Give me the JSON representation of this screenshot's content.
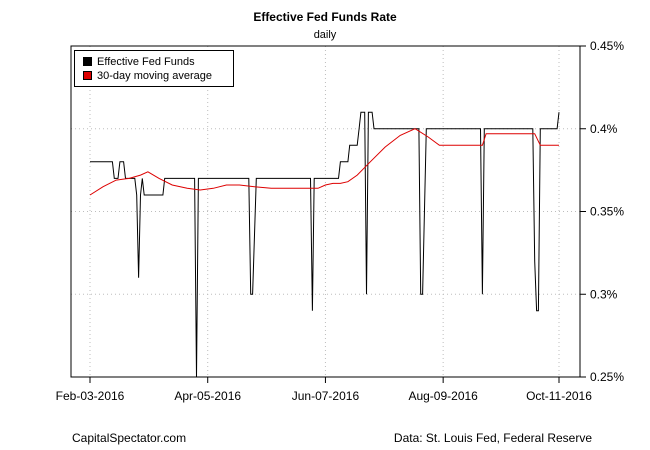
{
  "chart_data": {
    "type": "line",
    "title": "Effective Fed Funds Rate",
    "subtitle": "daily",
    "xlabel": "",
    "ylabel": "",
    "x_ticks": [
      "Feb-03-2016",
      "Apr-05-2016",
      "Jun-07-2016",
      "Aug-09-2016",
      "Oct-11-2016"
    ],
    "x_range": [
      "2016-02-03",
      "2016-10-11"
    ],
    "y_ticks": [
      "0.25%",
      "0.3%",
      "0.35%",
      "0.4%",
      "0.45%"
    ],
    "ylim": [
      0.25,
      0.45
    ],
    "y_axis_side": "right",
    "grid": true,
    "legend": "top-left",
    "series": [
      {
        "name": "Effective Fed Funds",
        "color": "#000000",
        "points": [
          [
            "2016-02-03",
            0.38
          ],
          [
            "2016-02-15",
            0.38
          ],
          [
            "2016-02-16",
            0.37
          ],
          [
            "2016-02-18",
            0.37
          ],
          [
            "2016-02-19",
            0.38
          ],
          [
            "2016-02-21",
            0.38
          ],
          [
            "2016-02-22",
            0.37
          ],
          [
            "2016-02-25",
            0.37
          ],
          [
            "2016-02-27",
            0.37
          ],
          [
            "2016-02-28",
            0.36
          ],
          [
            "2016-02-29",
            0.31
          ],
          [
            "2016-03-01",
            0.36
          ],
          [
            "2016-03-02",
            0.37
          ],
          [
            "2016-03-03",
            0.36
          ],
          [
            "2016-03-13",
            0.36
          ],
          [
            "2016-03-14",
            0.37
          ],
          [
            "2016-03-25",
            0.37
          ],
          [
            "2016-03-27",
            0.37
          ],
          [
            "2016-03-30",
            0.37
          ],
          [
            "2016-03-31",
            0.25
          ],
          [
            "2016-04-01",
            0.37
          ],
          [
            "2016-04-03",
            0.37
          ],
          [
            "2016-04-28",
            0.37
          ],
          [
            "2016-04-29",
            0.3
          ],
          [
            "2016-04-30",
            0.3
          ],
          [
            "2016-05-02",
            0.37
          ],
          [
            "2016-05-31",
            0.37
          ],
          [
            "2016-06-01",
            0.29
          ],
          [
            "2016-06-02",
            0.37
          ],
          [
            "2016-06-15",
            0.37
          ],
          [
            "2016-06-16",
            0.38
          ],
          [
            "2016-06-20",
            0.38
          ],
          [
            "2016-06-21",
            0.39
          ],
          [
            "2016-06-25",
            0.39
          ],
          [
            "2016-06-26",
            0.4
          ],
          [
            "2016-06-27",
            0.41
          ],
          [
            "2016-06-29",
            0.41
          ],
          [
            "2016-06-30",
            0.3
          ],
          [
            "2016-07-01",
            0.41
          ],
          [
            "2016-07-03",
            0.41
          ],
          [
            "2016-07-04",
            0.4
          ],
          [
            "2016-07-28",
            0.4
          ],
          [
            "2016-07-29",
            0.3
          ],
          [
            "2016-07-30",
            0.3
          ],
          [
            "2016-08-01",
            0.4
          ],
          [
            "2016-08-30",
            0.4
          ],
          [
            "2016-08-31",
            0.3
          ],
          [
            "2016-09-01",
            0.4
          ],
          [
            "2016-09-27",
            0.4
          ],
          [
            "2016-09-28",
            0.32
          ],
          [
            "2016-09-29",
            0.29
          ],
          [
            "2016-09-30",
            0.29
          ],
          [
            "2016-10-01",
            0.4
          ],
          [
            "2016-10-06",
            0.4
          ],
          [
            "2016-10-07",
            0.4
          ],
          [
            "2016-10-10",
            0.4
          ],
          [
            "2016-10-11",
            0.41
          ]
        ]
      },
      {
        "name": "30-day moving average",
        "color": "#dd0000",
        "points": [
          [
            "2016-02-03",
            0.36
          ],
          [
            "2016-02-10",
            0.365
          ],
          [
            "2016-02-17",
            0.369
          ],
          [
            "2016-02-24",
            0.37
          ],
          [
            "2016-03-01",
            0.372
          ],
          [
            "2016-03-05",
            0.374
          ],
          [
            "2016-03-11",
            0.37
          ],
          [
            "2016-03-18",
            0.366
          ],
          [
            "2016-03-26",
            0.364
          ],
          [
            "2016-04-02",
            0.363
          ],
          [
            "2016-04-09",
            0.364
          ],
          [
            "2016-04-16",
            0.366
          ],
          [
            "2016-04-23",
            0.366
          ],
          [
            "2016-05-01",
            0.365
          ],
          [
            "2016-05-10",
            0.364
          ],
          [
            "2016-05-20",
            0.364
          ],
          [
            "2016-05-30",
            0.364
          ],
          [
            "2016-06-04",
            0.364
          ],
          [
            "2016-06-08",
            0.366
          ],
          [
            "2016-06-12",
            0.367
          ],
          [
            "2016-06-16",
            0.367
          ],
          [
            "2016-06-20",
            0.368
          ],
          [
            "2016-06-25",
            0.372
          ],
          [
            "2016-07-02",
            0.38
          ],
          [
            "2016-07-10",
            0.389
          ],
          [
            "2016-07-18",
            0.396
          ],
          [
            "2016-07-26",
            0.4
          ],
          [
            "2016-08-02",
            0.395
          ],
          [
            "2016-08-08",
            0.39
          ],
          [
            "2016-08-20",
            0.39
          ],
          [
            "2016-08-31",
            0.39
          ],
          [
            "2016-09-02",
            0.397
          ],
          [
            "2016-09-10",
            0.397
          ],
          [
            "2016-09-20",
            0.397
          ],
          [
            "2016-09-28",
            0.397
          ],
          [
            "2016-10-01",
            0.39
          ],
          [
            "2016-10-11",
            0.39
          ]
        ]
      }
    ],
    "source_left": "CapitalSpectator.com",
    "source_right": "Data: St. Louis Fed, Federal Reserve"
  }
}
